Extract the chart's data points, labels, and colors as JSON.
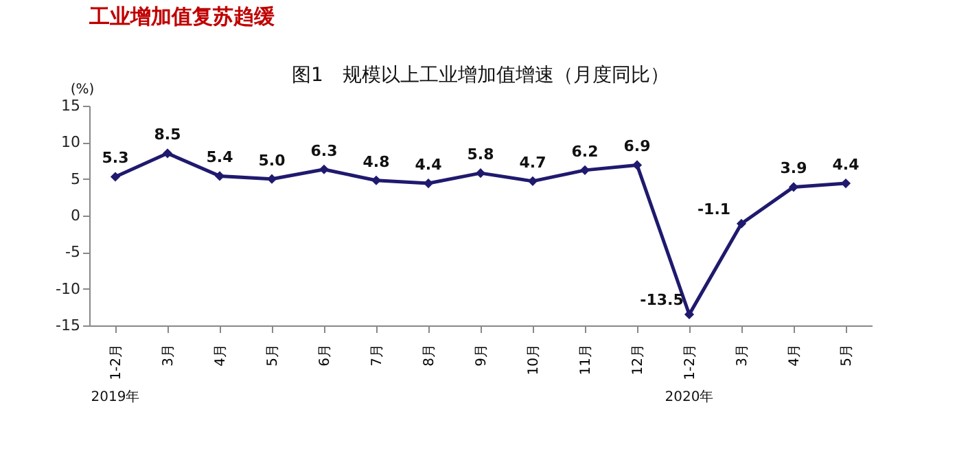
{
  "chart_data": {
    "type": "line",
    "title": "工业增加值复苏趋缓",
    "subtitle": "图1　规模以上工业增加值增速（月度同比）",
    "ylabel": "(%)",
    "categories": [
      "1-2月",
      "3月",
      "4月",
      "5月",
      "6月",
      "7月",
      "8月",
      "9月",
      "10月",
      "11月",
      "12月",
      "1-2月",
      "3月",
      "4月",
      "5月"
    ],
    "series": [
      {
        "color": "#1f1a6e",
        "values": [
          5.3,
          8.5,
          5.4,
          5.0,
          6.3,
          4.8,
          4.4,
          5.8,
          4.7,
          6.2,
          6.9,
          -13.5,
          -1.1,
          3.9,
          4.4
        ]
      }
    ],
    "value_labels": [
      "5.3",
      "8.5",
      "5.4",
      "5.0",
      "6.3",
      "4.8",
      "4.4",
      "5.8",
      "4.7",
      "6.2",
      "6.9",
      "-13.5",
      "-1.1",
      "3.9",
      "4.4"
    ],
    "annotations": [
      "2019年",
      "2020年"
    ],
    "ylim": [
      -15,
      15
    ],
    "yticks": [
      -15,
      -10,
      -5,
      0,
      5,
      10,
      15
    ],
    "grid": false,
    "marker": "diamond",
    "line_style": "solid"
  }
}
